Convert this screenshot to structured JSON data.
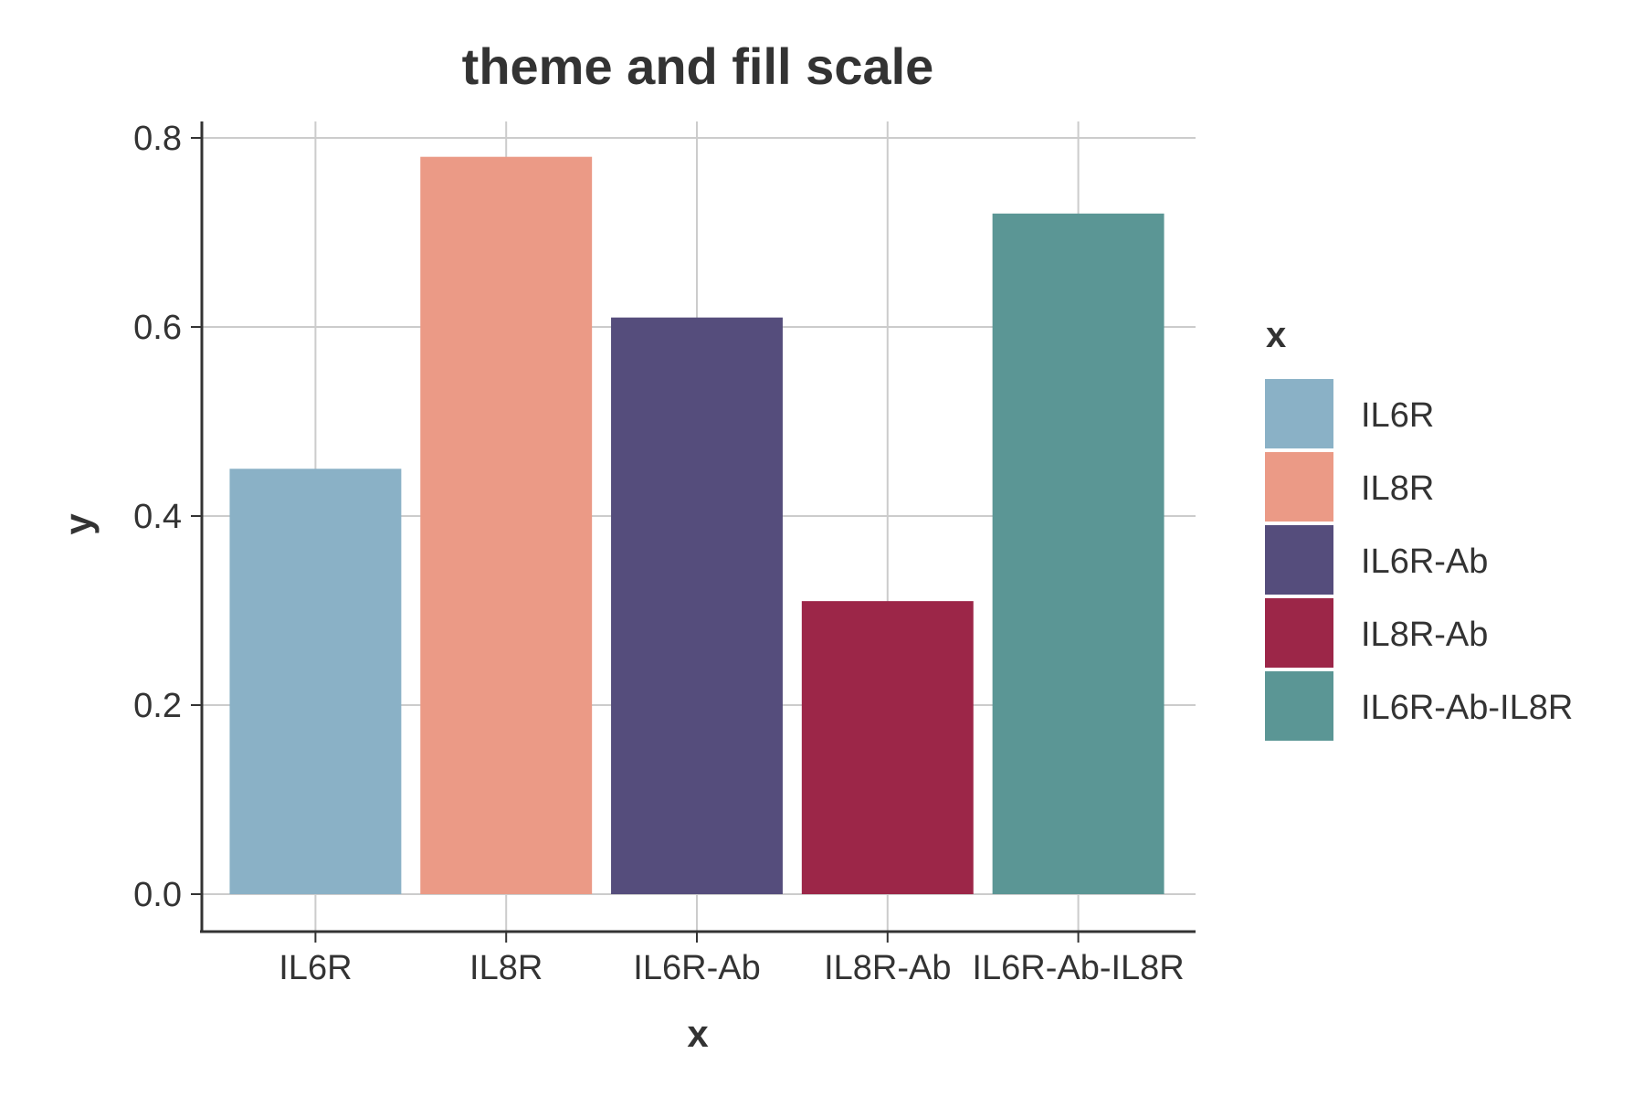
{
  "chart_data": {
    "type": "bar",
    "title": "theme and fill scale",
    "xlabel": "x",
    "ylabel": "y",
    "categories": [
      "IL6R",
      "IL8R",
      "IL6R-Ab",
      "IL8R-Ab",
      "IL6R-Ab-IL8R"
    ],
    "values": [
      0.45,
      0.78,
      0.61,
      0.31,
      0.72
    ],
    "colors": [
      "#8ab1c6",
      "#eb9a86",
      "#554d7c",
      "#9c2648",
      "#5b9695"
    ],
    "ylim": [
      0,
      0.8
    ],
    "yticks": [
      "0.0",
      "0.2",
      "0.4",
      "0.6",
      "0.8"
    ],
    "ytick_values": [
      0,
      0.2,
      0.4,
      0.6,
      0.8
    ],
    "grid": true,
    "legend": {
      "title": "x",
      "placement": "right",
      "entries": [
        "IL6R",
        "IL8R",
        "IL6R-Ab",
        "IL8R-Ab",
        "IL6R-Ab-IL8R"
      ]
    }
  }
}
